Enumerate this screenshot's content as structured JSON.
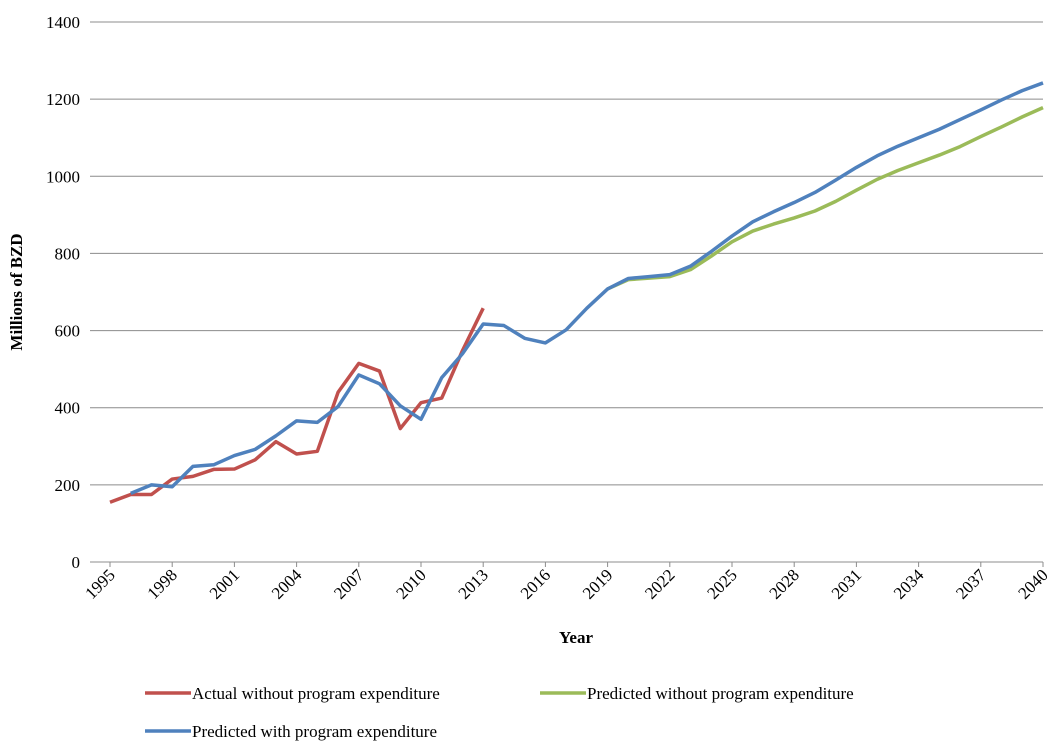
{
  "chart_data": {
    "type": "line",
    "x_label": "Year",
    "y_label": "Millions of BZD",
    "x": [
      1995,
      1996,
      1997,
      1998,
      1999,
      2000,
      2001,
      2002,
      2003,
      2004,
      2005,
      2006,
      2007,
      2008,
      2009,
      2010,
      2011,
      2012,
      2013,
      2014,
      2015,
      2016,
      2017,
      2018,
      2019,
      2020,
      2021,
      2022,
      2023,
      2024,
      2025,
      2026,
      2027,
      2028,
      2029,
      2030,
      2031,
      2032,
      2033,
      2034,
      2035,
      2036,
      2037,
      2038,
      2039,
      2040
    ],
    "xlim": [
      1995,
      2040
    ],
    "xticks": [
      1995,
      1998,
      2001,
      2004,
      2007,
      2010,
      2013,
      2016,
      2019,
      2022,
      2025,
      2028,
      2031,
      2034,
      2037,
      2040
    ],
    "ylim": [
      0,
      1400
    ],
    "yticks": [
      0,
      200,
      400,
      600,
      800,
      1000,
      1200,
      1400
    ],
    "grid": true,
    "legend": "bottom",
    "series": [
      {
        "name": "Actual without program expenditure",
        "color": "#c0504d",
        "values": [
          155,
          175,
          175,
          215,
          222,
          240,
          241,
          265,
          312,
          280,
          287,
          440,
          515,
          495,
          346,
          413,
          425,
          548,
          658,
          null,
          null,
          null,
          null,
          null,
          null,
          null,
          null,
          null,
          null,
          null,
          null,
          null,
          null,
          null,
          null,
          null,
          null,
          null,
          null,
          null,
          null,
          null,
          null,
          null,
          null,
          null
        ]
      },
      {
        "name": "Predicted without program expenditure",
        "color": "#9bbb59",
        "values": [
          null,
          null,
          null,
          null,
          null,
          null,
          null,
          null,
          null,
          null,
          null,
          null,
          null,
          null,
          null,
          null,
          null,
          null,
          null,
          null,
          null,
          null,
          null,
          null,
          708,
          732,
          736,
          740,
          758,
          793,
          830,
          858,
          876,
          892,
          910,
          935,
          964,
          992,
          1015,
          1035,
          1055,
          1077,
          1103,
          1128,
          1154,
          1178
        ]
      },
      {
        "name": "Predicted with program expenditure",
        "color": "#4f81bd",
        "values": [
          null,
          178,
          200,
          195,
          248,
          252,
          276,
          292,
          327,
          366,
          362,
          403,
          485,
          462,
          405,
          370,
          478,
          540,
          617,
          613,
          580,
          568,
          602,
          658,
          708,
          735,
          740,
          745,
          767,
          805,
          845,
          882,
          908,
          932,
          958,
          990,
          1023,
          1053,
          1078,
          1100,
          1122,
          1147,
          1172,
          1198,
          1222,
          1242
        ]
      }
    ]
  }
}
